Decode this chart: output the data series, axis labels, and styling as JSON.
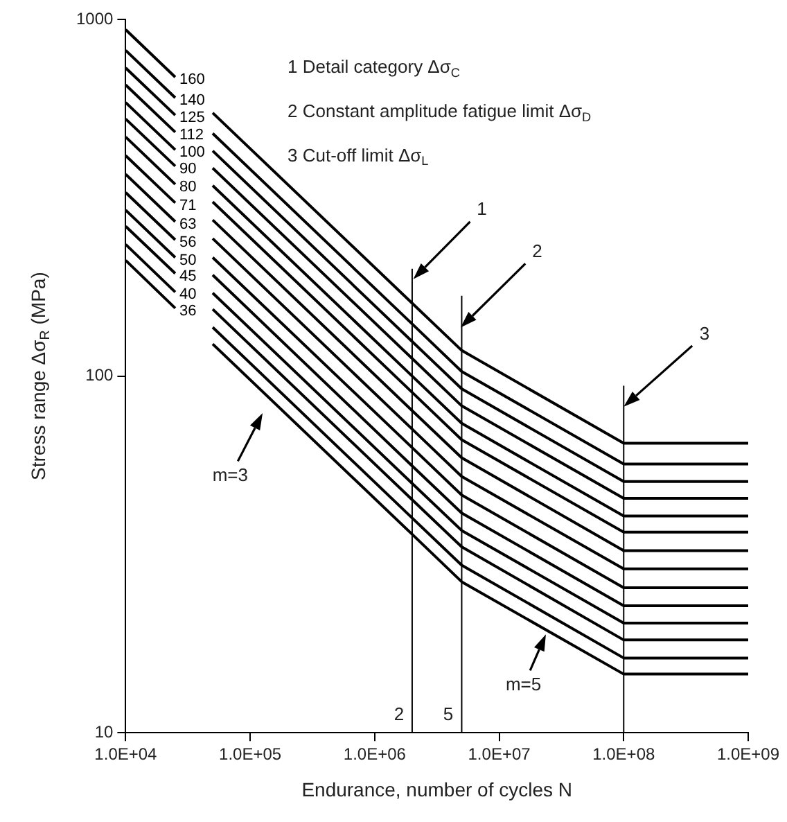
{
  "chart_data": {
    "type": "line",
    "xlabel": "Endurance, number of cycles N",
    "ylabel": "Stress range Δσ$_{R}$ (MPa)",
    "xlim": [
      10000,
      1000000000
    ],
    "ylim": [
      10,
      1000
    ],
    "log": "xy",
    "legend": false,
    "marker": "none",
    "xticks": [
      {
        "value": 10000,
        "label": "1.0E+04"
      },
      {
        "value": 100000,
        "label": "1.0E+05"
      },
      {
        "value": 1000000,
        "label": "1.0E+06"
      },
      {
        "value": 10000000,
        "label": "1.0E+07"
      },
      {
        "value": 100000000,
        "label": "1.0E+08"
      },
      {
        "value": 1000000000,
        "label": "1.0E+09"
      }
    ],
    "yticks": [
      10,
      100,
      1000
    ],
    "annotations": [
      "1 Detail category Δσ$_{C}$",
      "2 Constant amplitude fatigue limit Δσ$_{D}$",
      "3 Cut-off limit Δσ$_{L}$",
      "1",
      "2",
      "3",
      "m=3",
      "m=5",
      "2",
      "5"
    ],
    "series": [
      {
        "name": "160",
        "color": "#000000",
        "x": [
          10000,
          25000,
          35000,
          50000,
          2000000,
          5000000,
          100000000,
          1000000000
        ],
        "values": [
          936,
          689,
          null,
          547,
          160,
          118,
          64.8,
          64.8
        ]
      },
      {
        "name": "140",
        "color": "#000000",
        "x": [
          10000,
          25000,
          35000,
          50000,
          2000000,
          5000000,
          100000000,
          1000000000
        ],
        "values": [
          819,
          603,
          null,
          479,
          140,
          103,
          56.7,
          56.7
        ]
      },
      {
        "name": "125",
        "color": "#000000",
        "x": [
          10000,
          25000,
          35000,
          50000,
          2000000,
          5000000,
          100000000,
          1000000000
        ],
        "values": [
          731,
          539,
          null,
          428,
          125,
          92.1,
          50.6,
          50.6
        ]
      },
      {
        "name": "112",
        "color": "#000000",
        "x": [
          10000,
          25000,
          35000,
          50000,
          2000000,
          5000000,
          100000000,
          1000000000
        ],
        "values": [
          655,
          483,
          null,
          383,
          112,
          82.5,
          45.4,
          45.4
        ]
      },
      {
        "name": "100",
        "color": "#000000",
        "x": [
          10000,
          25000,
          35000,
          50000,
          2000000,
          5000000,
          100000000,
          1000000000
        ],
        "values": [
          585,
          431,
          null,
          342,
          100,
          73.7,
          40.5,
          40.5
        ]
      },
      {
        "name": "90",
        "color": "#000000",
        "x": [
          10000,
          25000,
          35000,
          50000,
          2000000,
          5000000,
          100000000,
          1000000000
        ],
        "values": [
          526,
          388,
          null,
          308,
          90,
          66.3,
          36.5,
          36.5
        ]
      },
      {
        "name": "80",
        "color": "#000000",
        "x": [
          10000,
          25000,
          35000,
          50000,
          2000000,
          5000000,
          100000000,
          1000000000
        ],
        "values": [
          468,
          345,
          null,
          274,
          80,
          59.0,
          32.4,
          32.4
        ]
      },
      {
        "name": "71",
        "color": "#000000",
        "x": [
          10000,
          25000,
          35000,
          50000,
          2000000,
          5000000,
          100000000,
          1000000000
        ],
        "values": [
          415,
          306,
          null,
          243,
          71,
          52.3,
          28.8,
          28.8
        ]
      },
      {
        "name": "63",
        "color": "#000000",
        "x": [
          10000,
          25000,
          35000,
          50000,
          2000000,
          5000000,
          100000000,
          1000000000
        ],
        "values": [
          368,
          271,
          null,
          215,
          63,
          46.4,
          25.5,
          25.5
        ]
      },
      {
        "name": "56",
        "color": "#000000",
        "x": [
          10000,
          25000,
          35000,
          50000,
          2000000,
          5000000,
          100000000,
          1000000000
        ],
        "values": [
          327,
          241,
          null,
          192,
          56,
          41.3,
          22.7,
          22.7
        ]
      },
      {
        "name": "50",
        "color": "#000000",
        "x": [
          10000,
          25000,
          35000,
          50000,
          2000000,
          5000000,
          100000000,
          1000000000
        ],
        "values": [
          292,
          215,
          null,
          171,
          50,
          36.9,
          20.3,
          20.3
        ]
      },
      {
        "name": "45",
        "color": "#000000",
        "x": [
          10000,
          25000,
          35000,
          50000,
          2000000,
          5000000,
          100000000,
          1000000000
        ],
        "values": [
          263,
          194,
          null,
          154,
          45,
          33.2,
          18.2,
          18.2
        ]
      },
      {
        "name": "40",
        "color": "#000000",
        "x": [
          10000,
          25000,
          35000,
          50000,
          2000000,
          5000000,
          100000000,
          1000000000
        ],
        "values": [
          234,
          172,
          null,
          137,
          40,
          29.5,
          16.2,
          16.2
        ]
      },
      {
        "name": "36",
        "color": "#000000",
        "x": [
          10000,
          25000,
          35000,
          50000,
          2000000,
          5000000,
          100000000,
          1000000000
        ],
        "values": [
          211,
          155,
          null,
          123,
          36,
          26.5,
          14.6,
          14.6
        ]
      },
      {
        "color": "#000000",
        "x": [
          2000000,
          2000000
        ],
        "values": [
          10,
          200
        ]
      },
      {
        "color": "#000000",
        "x": [
          5000000,
          5000000
        ],
        "values": [
          10,
          168
        ]
      },
      {
        "color": "#000000",
        "x": [
          100000000,
          100000000
        ],
        "values": [
          10,
          94
        ]
      }
    ]
  }
}
